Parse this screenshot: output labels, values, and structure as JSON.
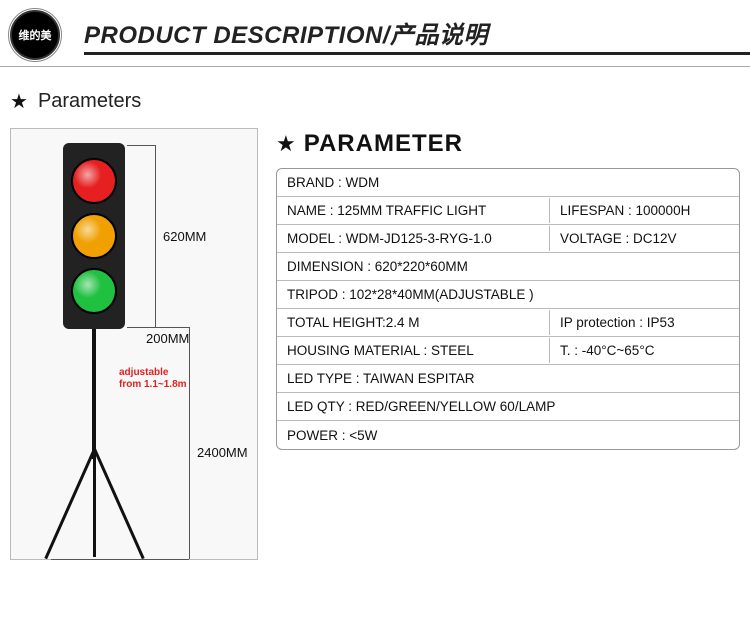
{
  "header": {
    "logo_text": "维的美",
    "title": "PRODUCT DESCRIPTION/产品说明"
  },
  "section": {
    "label": "Parameters"
  },
  "params_header": "PARAMETER",
  "diagram": {
    "h620": "620MM",
    "h2400": "2400MM",
    "w200": "200MM",
    "adjustable_l1": "adjustable",
    "adjustable_l2": "from 1.1~1.8m",
    "lamp_colors": {
      "red": "#e62020",
      "amber": "#f0a000",
      "green": "#20c040"
    }
  },
  "rows": [
    {
      "left": "BRAND : WDM",
      "right": null
    },
    {
      "left": "NAME : 125MM TRAFFIC LIGHT",
      "right": "LIFESPAN : 100000H"
    },
    {
      "left": "MODEL : WDM-JD125-3-RYG-1.0",
      "right": "VOLTAGE : DC12V"
    },
    {
      "left": "DIMENSION : 620*220*60MM",
      "right": null
    },
    {
      "left": "TRIPOD : 102*28*40MM(ADJUSTABLE )",
      "right": null
    },
    {
      "left": "TOTAL HEIGHT:2.4 M",
      "right": "IP protection : IP53"
    },
    {
      "left": "HOUSING MATERIAL : STEEL",
      "right": "T. : -40°C~65°C"
    },
    {
      "left": "LED TYPE : TAIWAN ESPITAR",
      "right": null
    },
    {
      "left": "LED QTY : RED/GREEN/YELLOW 60/LAMP",
      "right": null
    },
    {
      "left": "POWER : <5W",
      "right": null
    }
  ]
}
